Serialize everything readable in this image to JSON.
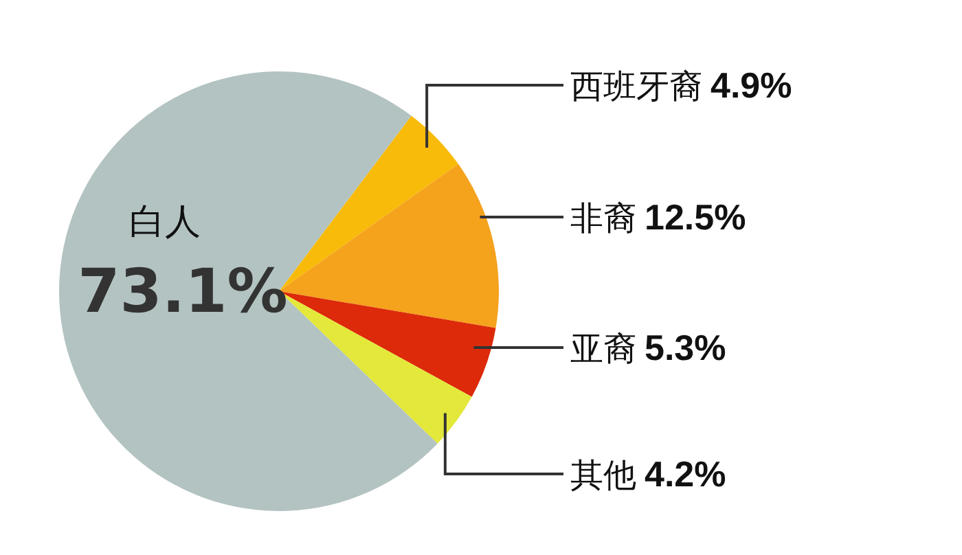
{
  "chart_data": {
    "type": "pie",
    "categories": [
      "西班牙裔",
      "非裔",
      "亚裔",
      "其他",
      "白人"
    ],
    "values": [
      4.9,
      12.5,
      5.3,
      4.2,
      73.1
    ],
    "value_labels": [
      "4.9%",
      "12.5%",
      "5.3%",
      "4.2%",
      "73.1%"
    ],
    "colors": [
      "#f8bb0a",
      "#f5a21d",
      "#dc2a0a",
      "#e3e83a",
      "#b3c3c1"
    ]
  }
}
